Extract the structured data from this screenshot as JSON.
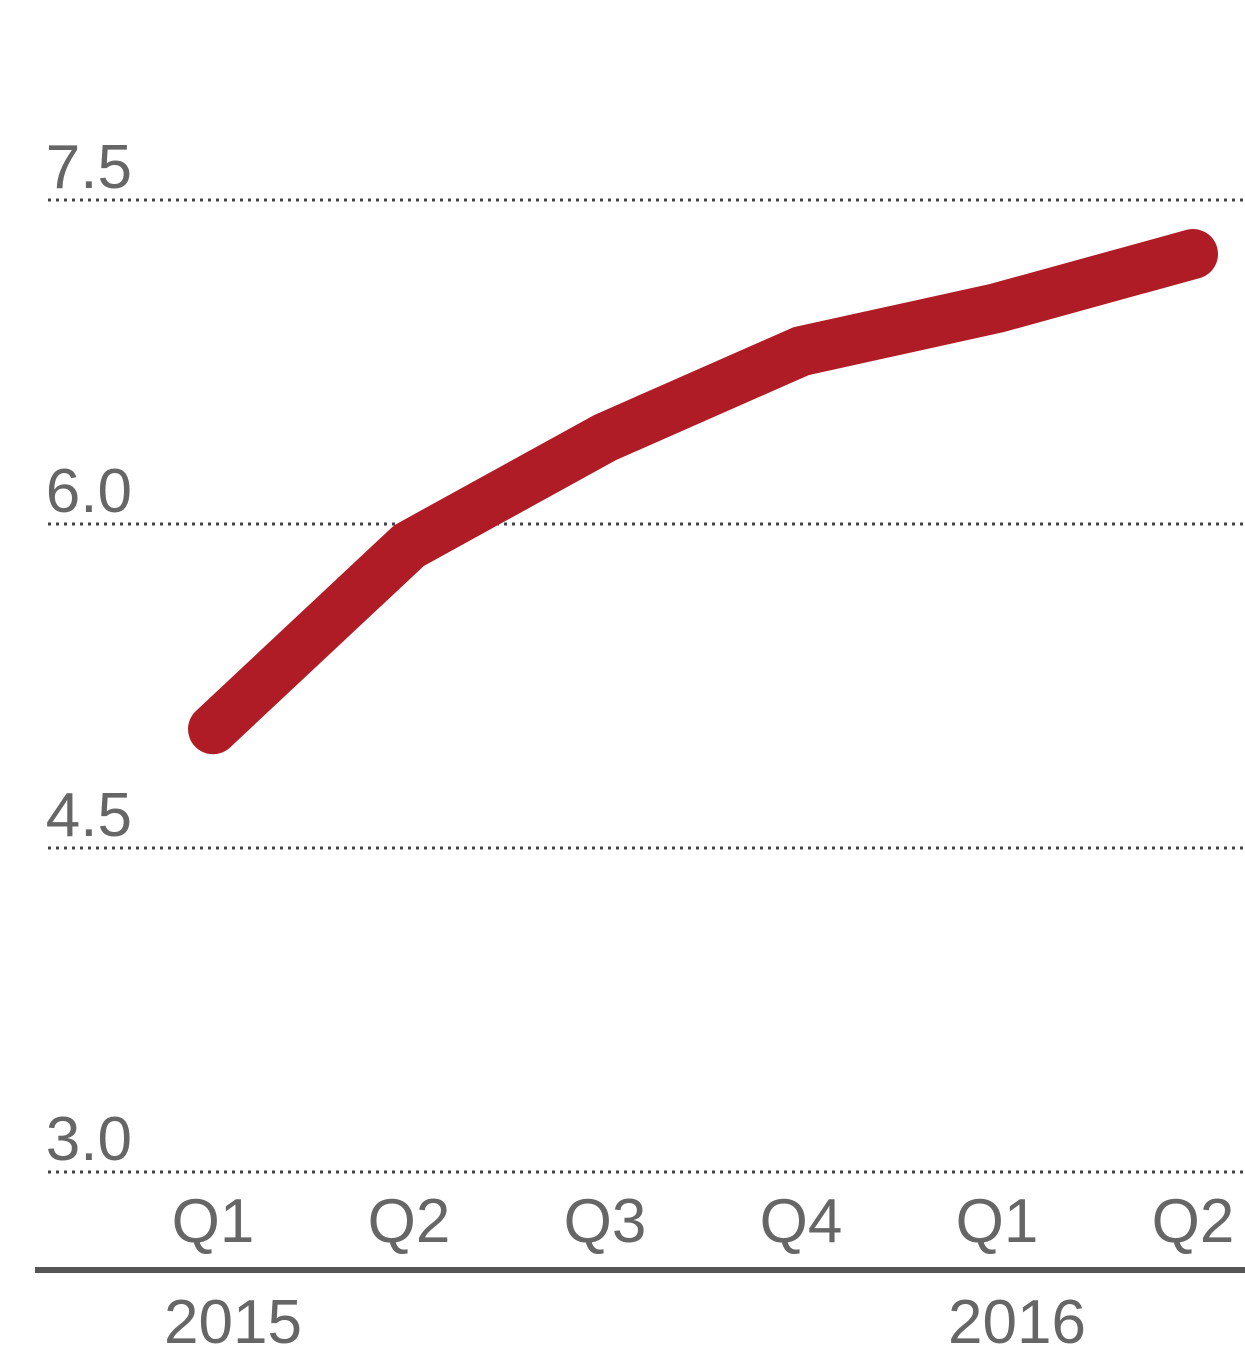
{
  "chart_data": {
    "type": "line",
    "title": "",
    "xlabel": "",
    "ylabel": "",
    "categories": [
      "Q1",
      "Q2",
      "Q3",
      "Q4",
      "Q1",
      "Q2"
    ],
    "years": [
      {
        "label": "2015",
        "at_category": 0
      },
      {
        "label": "2016",
        "at_category": 4
      }
    ],
    "yticks": [
      "7.5",
      "6.0",
      "4.5",
      "3.0"
    ],
    "ytick_values": [
      7.5,
      6.0,
      4.5,
      3.0
    ],
    "ylim": [
      3.0,
      7.5
    ],
    "grid": "dotted horizontal",
    "legend": "none",
    "series": [
      {
        "values": [
          5.05,
          5.9,
          6.4,
          6.8,
          7.0,
          7.25
        ],
        "color": "#b01c25"
      }
    ]
  }
}
